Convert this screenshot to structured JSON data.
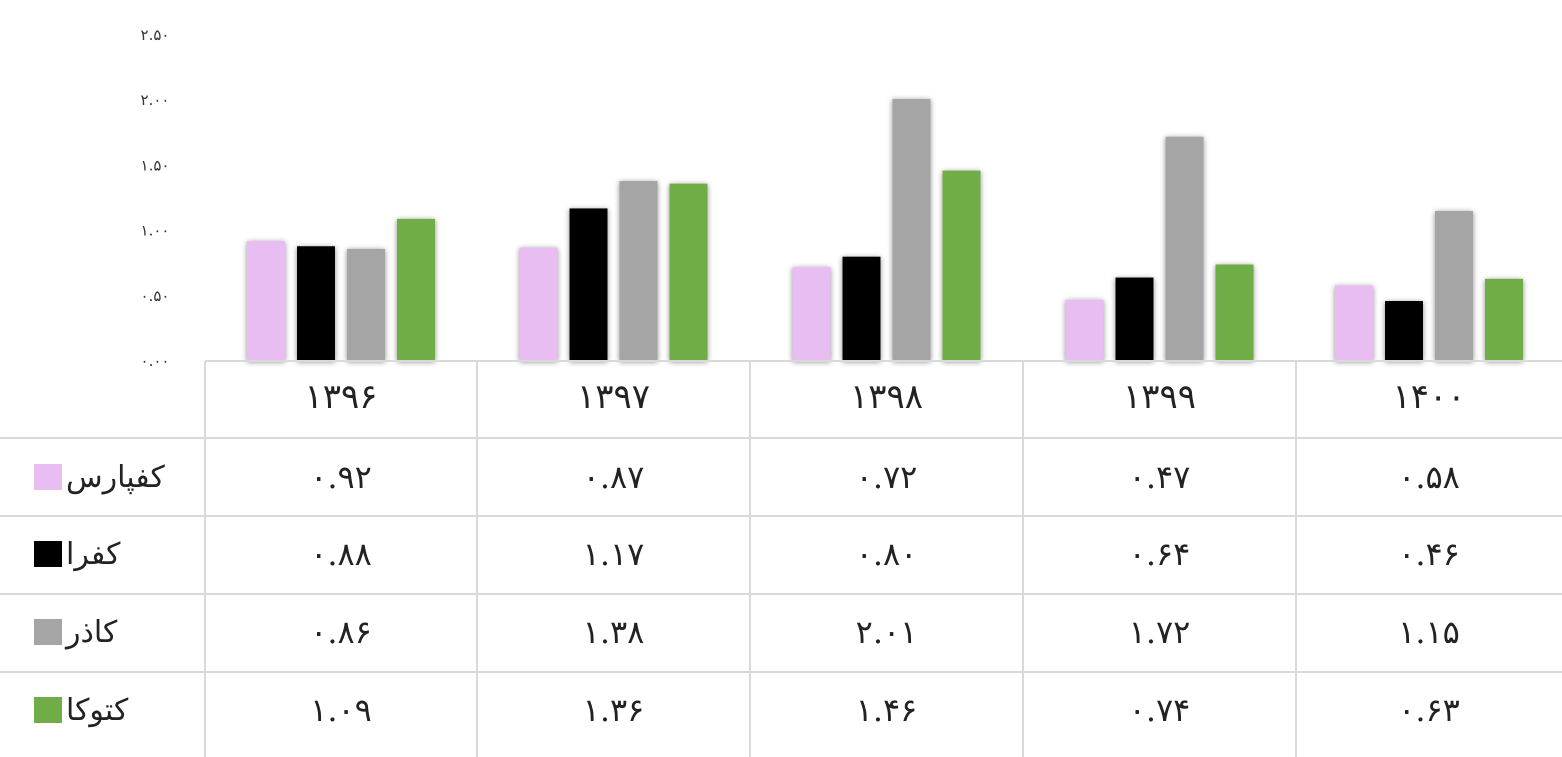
{
  "chart_data": {
    "type": "bar",
    "ylim": [
      0,
      2.5
    ],
    "yticks": [
      "۰.۰۰",
      "۰.۵۰",
      "۱.۰۰",
      "۱.۵۰",
      "۲.۰۰",
      "۲.۵۰"
    ],
    "yticks_values": [
      0,
      0.5,
      1.0,
      1.5,
      2.0,
      2.5
    ],
    "categories": [
      "۱۳۹۶",
      "۱۳۹۷",
      "۱۳۹۸",
      "۱۳۹۹",
      "۱۴۰۰"
    ],
    "series": [
      {
        "name": "کفپارس",
        "color": "#e8bdf2",
        "values": [
          0.92,
          0.87,
          0.72,
          0.47,
          0.58
        ],
        "labels": [
          "۰.۹۲",
          "۰.۸۷",
          "۰.۷۲",
          "۰.۴۷",
          "۰.۵۸"
        ]
      },
      {
        "name": "کفرا",
        "color": "#000000",
        "values": [
          0.88,
          1.17,
          0.8,
          0.64,
          0.46
        ],
        "labels": [
          "۰.۸۸",
          "۱.۱۷",
          "۰.۸۰",
          "۰.۶۴",
          "۰.۴۶"
        ]
      },
      {
        "name": "کاذر",
        "color": "#a5a5a5",
        "values": [
          0.86,
          1.38,
          2.01,
          1.72,
          1.15
        ],
        "labels": [
          "۰.۸۶",
          "۱.۳۸",
          "۲.۰۱",
          "۱.۷۲",
          "۱.۱۵"
        ]
      },
      {
        "name": "کتوکا",
        "color": "#70ad47",
        "values": [
          1.09,
          1.36,
          1.46,
          0.74,
          0.63
        ],
        "labels": [
          "۱.۰۹",
          "۱.۳۶",
          "۱.۴۶",
          "۰.۷۴",
          "۰.۶۳"
        ]
      }
    ],
    "legend": "data-table-left",
    "grid": false
  }
}
